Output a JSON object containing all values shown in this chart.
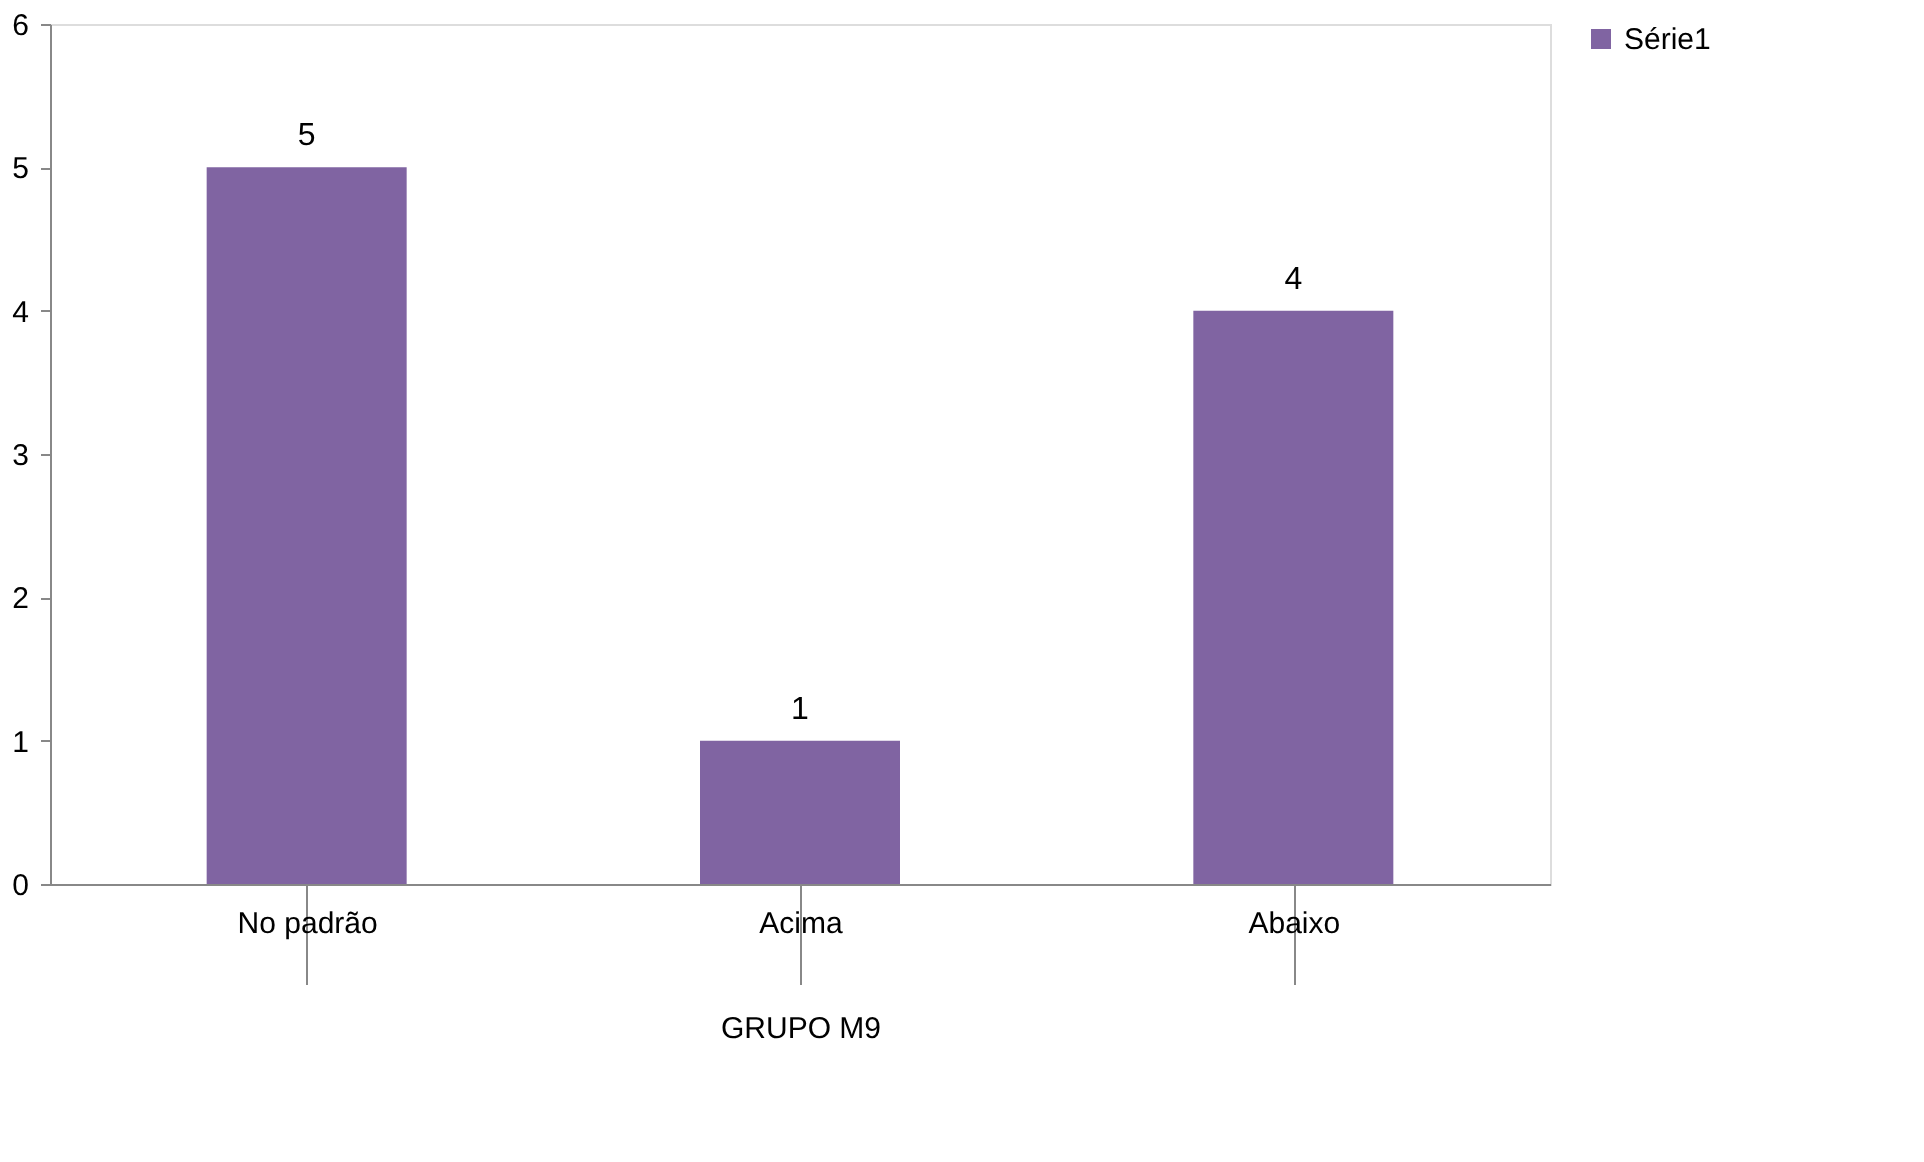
{
  "chart_data": {
    "type": "bar",
    "categories": [
      "No padrão",
      "Acima",
      "Abaixo"
    ],
    "xlabel": "GRUPO M9",
    "series": [
      {
        "name": "Série1",
        "color": "#8064a2",
        "values": [
          5,
          1,
          4
        ]
      }
    ],
    "ylim": [
      0,
      6
    ],
    "yticks": [
      0,
      1,
      2,
      3,
      4,
      5,
      6
    ],
    "grid": false,
    "legend": "right",
    "data_labels": true
  }
}
